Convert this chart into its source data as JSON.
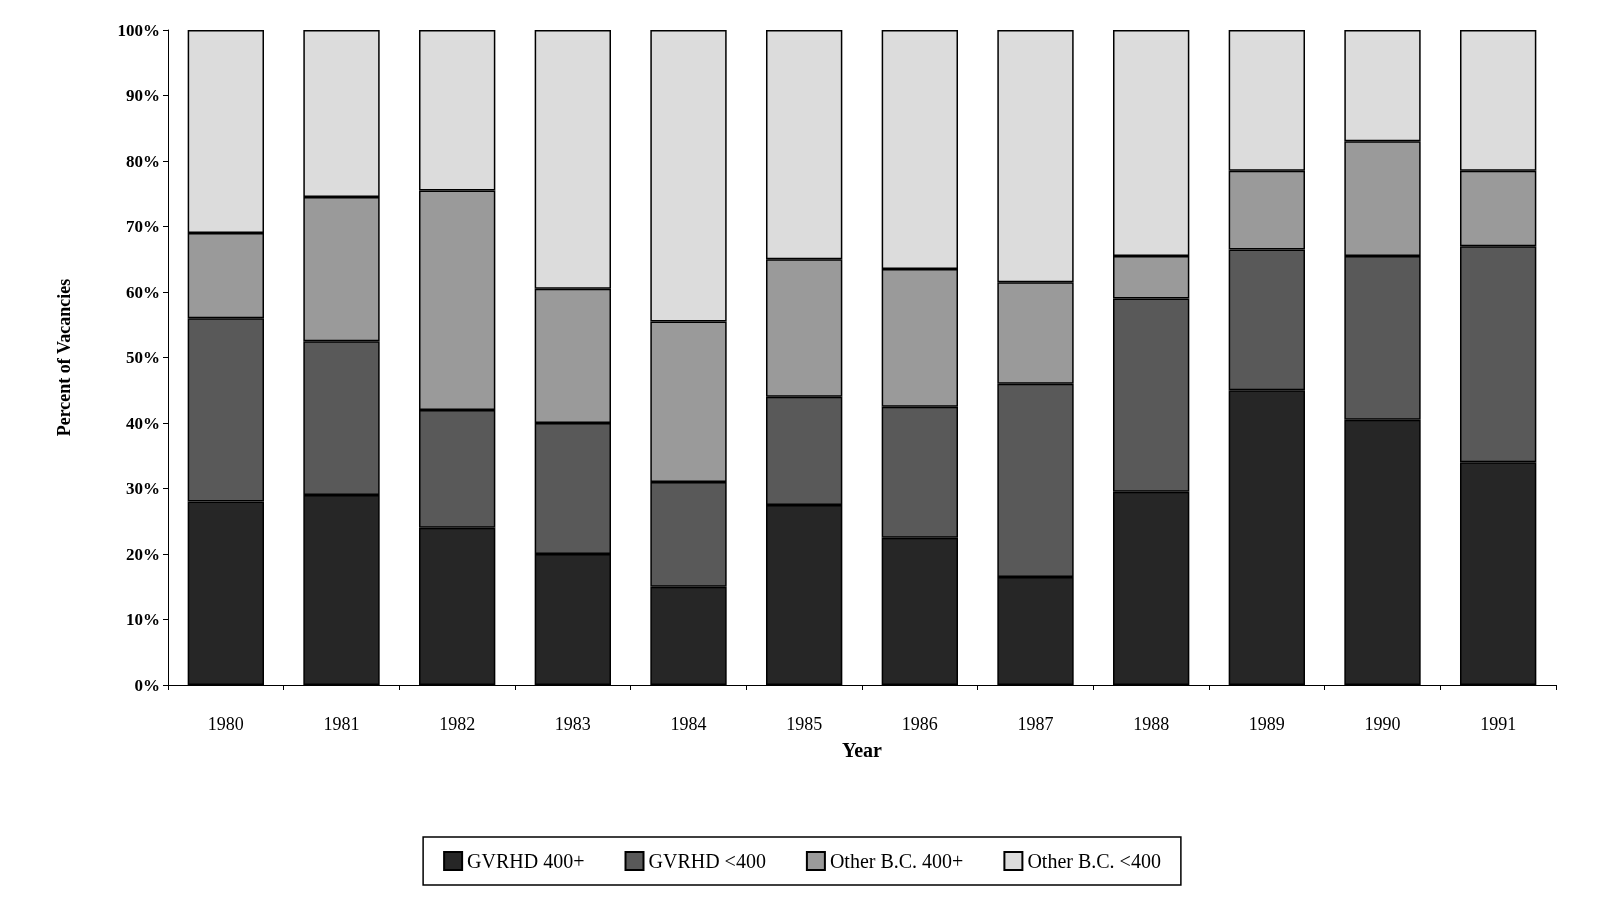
{
  "chart_data": {
    "type": "bar",
    "stacked": true,
    "xlabel": "Year",
    "ylabel": "Percent of Vacancies",
    "categories": [
      "1980",
      "1981",
      "1982",
      "1983",
      "1984",
      "1985",
      "1986",
      "1987",
      "1988",
      "1989",
      "1990",
      "1991"
    ],
    "series": [
      {
        "name": "GVRHD 400+",
        "color": "#262626",
        "values": [
          28,
          29,
          24,
          20,
          15,
          27.5,
          22.5,
          16.5,
          29.5,
          45,
          40.5,
          34
        ]
      },
      {
        "name": "GVRHD <400",
        "color": "#595959",
        "values": [
          28,
          23.5,
          18,
          20,
          16,
          16.5,
          20,
          29.5,
          29.5,
          21.5,
          25,
          33
        ]
      },
      {
        "name": "Other B.C. 400+",
        "color": "#9a9a9a",
        "values": [
          13,
          22,
          33.5,
          20.5,
          24.5,
          21,
          21,
          15.5,
          6.5,
          12,
          17.5,
          11.5
        ]
      },
      {
        "name": "Other B.C. <400",
        "color": "#dcdcdc",
        "values": [
          31,
          25.5,
          24.5,
          39.5,
          44.5,
          35,
          36.5,
          38.5,
          34.5,
          21.5,
          17,
          21.5
        ]
      }
    ],
    "ylim": [
      0,
      100
    ],
    "yticks": [
      {
        "value": 0,
        "label": "0%"
      },
      {
        "value": 10,
        "label": "10%"
      },
      {
        "value": 20,
        "label": "20%"
      },
      {
        "value": 30,
        "label": "30%"
      },
      {
        "value": 40,
        "label": "40%"
      },
      {
        "value": 50,
        "label": "50%"
      },
      {
        "value": 60,
        "label": "60%"
      },
      {
        "value": 70,
        "label": "70%"
      },
      {
        "value": 80,
        "label": "80%"
      },
      {
        "value": 90,
        "label": "90%"
      },
      {
        "value": 100,
        "label": "100%"
      }
    ],
    "grid": false,
    "legend": "bottom"
  }
}
